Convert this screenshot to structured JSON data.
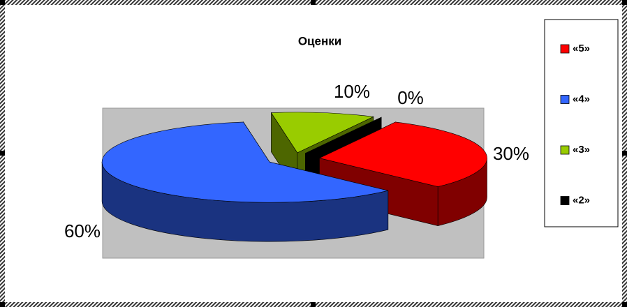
{
  "chart_data": {
    "type": "pie",
    "title": "Оценки",
    "categories": [
      "«5»",
      "«4»",
      "«3»",
      "«2»"
    ],
    "values": [
      30,
      60,
      10,
      0
    ],
    "value_labels": [
      "30%",
      "60%",
      "10%",
      "0%"
    ],
    "colors": [
      "#ff0000",
      "#3366ff",
      "#99cc00",
      "#000000"
    ],
    "legend": "right"
  }
}
